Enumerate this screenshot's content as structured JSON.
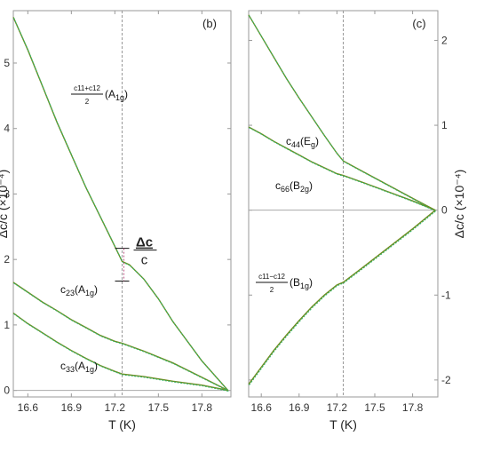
{
  "chart_data": [
    {
      "type": "line",
      "panel_label": "(b)",
      "xlabel": "T (K)",
      "ylabel": "Δc/c (×10⁻⁴)",
      "xlim": [
        16.5,
        18.0
      ],
      "ylim": [
        -0.1,
        5.8
      ],
      "xticks": [
        16.6,
        16.9,
        17.2,
        17.5,
        17.8
      ],
      "xtick_labels": [
        "16.6",
        "16.9",
        "17.2",
        "17.5",
        "17.8"
      ],
      "yticks": [
        0,
        1,
        2,
        3,
        4,
        5
      ],
      "ytick_labels": [
        "0",
        "1",
        "2",
        "3",
        "4",
        "5"
      ],
      "y_axis_side": "left",
      "transition_T": 17.25,
      "series": [
        {
          "label_main": "c",
          "label_sub": "33",
          "label_mode": "(A",
          "label_mode_sub": "1g",
          "label_close": ")",
          "points": [
            [
              16.5,
              1.18
            ],
            [
              16.6,
              1.02
            ],
            [
              16.7,
              0.88
            ],
            [
              16.8,
              0.74
            ],
            [
              16.9,
              0.61
            ],
            [
              17.0,
              0.49
            ],
            [
              17.1,
              0.38
            ],
            [
              17.2,
              0.29
            ],
            [
              17.25,
              0.25
            ],
            [
              17.4,
              0.21
            ],
            [
              17.6,
              0.14
            ],
            [
              17.8,
              0.08
            ],
            [
              17.98,
              0.0
            ]
          ]
        },
        {
          "label_main": "c",
          "label_sub": "23",
          "label_mode": "(A",
          "label_mode_sub": "1g",
          "label_close": ")",
          "points": [
            [
              16.5,
              1.65
            ],
            [
              16.6,
              1.5
            ],
            [
              16.7,
              1.35
            ],
            [
              16.8,
              1.22
            ],
            [
              16.9,
              1.08
            ],
            [
              17.0,
              0.96
            ],
            [
              17.1,
              0.84
            ],
            [
              17.2,
              0.75
            ],
            [
              17.25,
              0.72
            ],
            [
              17.4,
              0.6
            ],
            [
              17.6,
              0.42
            ],
            [
              17.8,
              0.2
            ],
            [
              17.98,
              0.0
            ]
          ]
        },
        {
          "label_numer": "c11+c12",
          "label_denom": "2",
          "label_mode": "(A",
          "label_mode_sub": "1g",
          "label_close": ")",
          "points": [
            [
              16.5,
              5.7
            ],
            [
              16.6,
              5.2
            ],
            [
              16.7,
              4.65
            ],
            [
              16.8,
              4.1
            ],
            [
              16.9,
              3.6
            ],
            [
              17.0,
              3.1
            ],
            [
              17.1,
              2.65
            ],
            [
              17.2,
              2.2
            ],
            [
              17.25,
              1.97
            ],
            [
              17.3,
              1.92
            ],
            [
              17.4,
              1.7
            ],
            [
              17.5,
              1.4
            ],
            [
              17.6,
              1.05
            ],
            [
              17.7,
              0.75
            ],
            [
              17.8,
              0.45
            ],
            [
              17.98,
              0.0
            ]
          ]
        }
      ],
      "annotation": {
        "numerator": "Δc",
        "denominator": "c",
        "jump_top": 2.17,
        "jump_bottom": 1.67,
        "jump_T": 17.25
      }
    },
    {
      "type": "line",
      "panel_label": "(c)",
      "xlabel": "T (K)",
      "ylabel": "Δc/c (×10⁻⁴)",
      "xlim": [
        16.5,
        18.0
      ],
      "ylim": [
        -2.2,
        2.35
      ],
      "xticks": [
        16.6,
        16.9,
        17.2,
        17.5,
        17.8
      ],
      "xtick_labels": [
        "16.6",
        "16.9",
        "17.2",
        "17.5",
        "17.8"
      ],
      "yticks": [
        -2,
        -1,
        0,
        1,
        2
      ],
      "ytick_labels": [
        "-2",
        "-1",
        "0",
        "1",
        "2"
      ],
      "y_axis_side": "right",
      "transition_T": 17.25,
      "series": [
        {
          "label_main": "c",
          "label_sub": "44",
          "label_mode": "(E",
          "label_mode_sub": "g",
          "label_close": ")",
          "points": [
            [
              16.5,
              2.3
            ],
            [
              16.6,
              2.05
            ],
            [
              16.7,
              1.8
            ],
            [
              16.8,
              1.55
            ],
            [
              16.9,
              1.32
            ],
            [
              17.0,
              1.1
            ],
            [
              17.1,
              0.88
            ],
            [
              17.2,
              0.67
            ],
            [
              17.25,
              0.58
            ],
            [
              17.4,
              0.46
            ],
            [
              17.6,
              0.3
            ],
            [
              17.8,
              0.14
            ],
            [
              17.98,
              0.0
            ]
          ]
        },
        {
          "label_main": "c",
          "label_sub": "66",
          "label_mode": "(B",
          "label_mode_sub": "2g",
          "label_close": ")",
          "points": [
            [
              16.5,
              0.98
            ],
            [
              16.6,
              0.9
            ],
            [
              16.7,
              0.81
            ],
            [
              16.8,
              0.73
            ],
            [
              16.9,
              0.65
            ],
            [
              17.0,
              0.57
            ],
            [
              17.1,
              0.5
            ],
            [
              17.2,
              0.43
            ],
            [
              17.25,
              0.41
            ],
            [
              17.4,
              0.33
            ],
            [
              17.6,
              0.22
            ],
            [
              17.8,
              0.11
            ],
            [
              17.98,
              0.0
            ]
          ]
        },
        {
          "label_numer": "c11−c12",
          "label_denom": "2",
          "label_mode": "(B",
          "label_mode_sub": "1g",
          "label_close": ")",
          "points": [
            [
              16.5,
              -2.05
            ],
            [
              16.6,
              -1.85
            ],
            [
              16.7,
              -1.65
            ],
            [
              16.8,
              -1.47
            ],
            [
              16.9,
              -1.3
            ],
            [
              17.0,
              -1.14
            ],
            [
              17.1,
              -1.0
            ],
            [
              17.2,
              -0.88
            ],
            [
              17.25,
              -0.85
            ],
            [
              17.4,
              -0.68
            ],
            [
              17.6,
              -0.45
            ],
            [
              17.8,
              -0.22
            ],
            [
              17.98,
              0.0
            ]
          ]
        }
      ]
    }
  ]
}
